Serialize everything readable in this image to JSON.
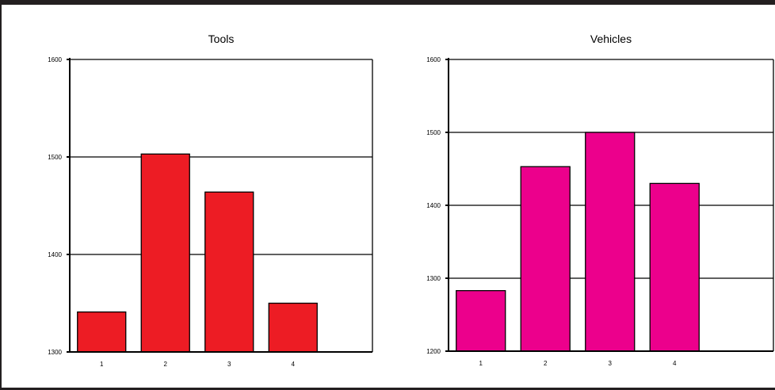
{
  "chart_data": [
    {
      "type": "bar",
      "title": "Tools",
      "categories": [
        "1",
        "2",
        "3",
        "4"
      ],
      "values": [
        1341,
        1503,
        1464,
        1350
      ],
      "ylim": [
        1300,
        1600
      ],
      "yticks": [
        "1300",
        "1400",
        "1500",
        "1600"
      ],
      "grid": true,
      "color": "#ed1c24"
    },
    {
      "type": "bar",
      "title": "Vehicles",
      "categories": [
        "1",
        "2",
        "3",
        "4"
      ],
      "values": [
        1283,
        1453,
        1500,
        1430
      ],
      "ylim": [
        1200,
        1600
      ],
      "yticks": [
        "1200",
        "1300",
        "1400",
        "1500",
        "1600"
      ],
      "grid": true,
      "color": "#ec008c"
    }
  ]
}
